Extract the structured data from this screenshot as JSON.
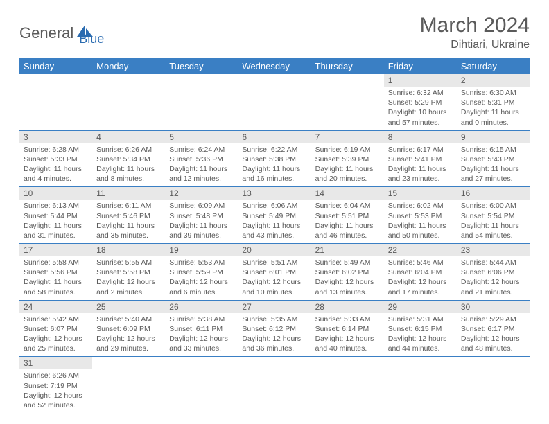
{
  "logo": {
    "part1": "General",
    "part2": "Blue"
  },
  "title": {
    "month_year": "March 2024",
    "location": "Dihtiari, Ukraine"
  },
  "weekdays": [
    "Sunday",
    "Monday",
    "Tuesday",
    "Wednesday",
    "Thursday",
    "Friday",
    "Saturday"
  ],
  "colors": {
    "header_bg": "#3a7fc4",
    "header_fg": "#ffffff",
    "daynum_bg": "#e8e8e8",
    "text": "#5a5a5a",
    "border": "#3a7fc4",
    "logo_blue": "#2a6bb0"
  },
  "first_weekday_index": 5,
  "days": [
    {
      "n": 1,
      "sunrise": "6:32 AM",
      "sunset": "5:29 PM",
      "daylight": "10 hours and 57 minutes."
    },
    {
      "n": 2,
      "sunrise": "6:30 AM",
      "sunset": "5:31 PM",
      "daylight": "11 hours and 0 minutes."
    },
    {
      "n": 3,
      "sunrise": "6:28 AM",
      "sunset": "5:33 PM",
      "daylight": "11 hours and 4 minutes."
    },
    {
      "n": 4,
      "sunrise": "6:26 AM",
      "sunset": "5:34 PM",
      "daylight": "11 hours and 8 minutes."
    },
    {
      "n": 5,
      "sunrise": "6:24 AM",
      "sunset": "5:36 PM",
      "daylight": "11 hours and 12 minutes."
    },
    {
      "n": 6,
      "sunrise": "6:22 AM",
      "sunset": "5:38 PM",
      "daylight": "11 hours and 16 minutes."
    },
    {
      "n": 7,
      "sunrise": "6:19 AM",
      "sunset": "5:39 PM",
      "daylight": "11 hours and 20 minutes."
    },
    {
      "n": 8,
      "sunrise": "6:17 AM",
      "sunset": "5:41 PM",
      "daylight": "11 hours and 23 minutes."
    },
    {
      "n": 9,
      "sunrise": "6:15 AM",
      "sunset": "5:43 PM",
      "daylight": "11 hours and 27 minutes."
    },
    {
      "n": 10,
      "sunrise": "6:13 AM",
      "sunset": "5:44 PM",
      "daylight": "11 hours and 31 minutes."
    },
    {
      "n": 11,
      "sunrise": "6:11 AM",
      "sunset": "5:46 PM",
      "daylight": "11 hours and 35 minutes."
    },
    {
      "n": 12,
      "sunrise": "6:09 AM",
      "sunset": "5:48 PM",
      "daylight": "11 hours and 39 minutes."
    },
    {
      "n": 13,
      "sunrise": "6:06 AM",
      "sunset": "5:49 PM",
      "daylight": "11 hours and 43 minutes."
    },
    {
      "n": 14,
      "sunrise": "6:04 AM",
      "sunset": "5:51 PM",
      "daylight": "11 hours and 46 minutes."
    },
    {
      "n": 15,
      "sunrise": "6:02 AM",
      "sunset": "5:53 PM",
      "daylight": "11 hours and 50 minutes."
    },
    {
      "n": 16,
      "sunrise": "6:00 AM",
      "sunset": "5:54 PM",
      "daylight": "11 hours and 54 minutes."
    },
    {
      "n": 17,
      "sunrise": "5:58 AM",
      "sunset": "5:56 PM",
      "daylight": "11 hours and 58 minutes."
    },
    {
      "n": 18,
      "sunrise": "5:55 AM",
      "sunset": "5:58 PM",
      "daylight": "12 hours and 2 minutes."
    },
    {
      "n": 19,
      "sunrise": "5:53 AM",
      "sunset": "5:59 PM",
      "daylight": "12 hours and 6 minutes."
    },
    {
      "n": 20,
      "sunrise": "5:51 AM",
      "sunset": "6:01 PM",
      "daylight": "12 hours and 10 minutes."
    },
    {
      "n": 21,
      "sunrise": "5:49 AM",
      "sunset": "6:02 PM",
      "daylight": "12 hours and 13 minutes."
    },
    {
      "n": 22,
      "sunrise": "5:46 AM",
      "sunset": "6:04 PM",
      "daylight": "12 hours and 17 minutes."
    },
    {
      "n": 23,
      "sunrise": "5:44 AM",
      "sunset": "6:06 PM",
      "daylight": "12 hours and 21 minutes."
    },
    {
      "n": 24,
      "sunrise": "5:42 AM",
      "sunset": "6:07 PM",
      "daylight": "12 hours and 25 minutes."
    },
    {
      "n": 25,
      "sunrise": "5:40 AM",
      "sunset": "6:09 PM",
      "daylight": "12 hours and 29 minutes."
    },
    {
      "n": 26,
      "sunrise": "5:38 AM",
      "sunset": "6:11 PM",
      "daylight": "12 hours and 33 minutes."
    },
    {
      "n": 27,
      "sunrise": "5:35 AM",
      "sunset": "6:12 PM",
      "daylight": "12 hours and 36 minutes."
    },
    {
      "n": 28,
      "sunrise": "5:33 AM",
      "sunset": "6:14 PM",
      "daylight": "12 hours and 40 minutes."
    },
    {
      "n": 29,
      "sunrise": "5:31 AM",
      "sunset": "6:15 PM",
      "daylight": "12 hours and 44 minutes."
    },
    {
      "n": 30,
      "sunrise": "5:29 AM",
      "sunset": "6:17 PM",
      "daylight": "12 hours and 48 minutes."
    },
    {
      "n": 31,
      "sunrise": "6:26 AM",
      "sunset": "7:19 PM",
      "daylight": "12 hours and 52 minutes."
    }
  ],
  "labels": {
    "sunrise": "Sunrise:",
    "sunset": "Sunset:",
    "daylight": "Daylight:"
  }
}
